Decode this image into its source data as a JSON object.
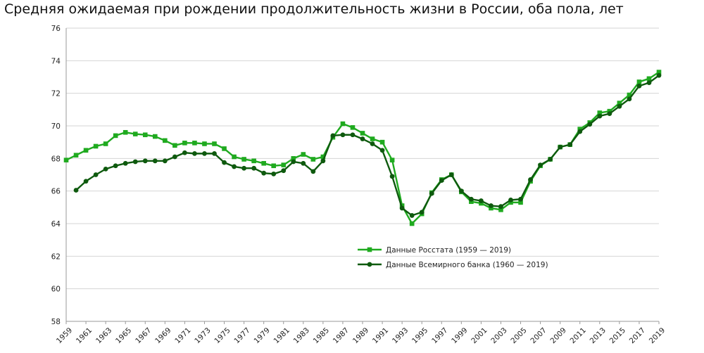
{
  "chart_data": {
    "type": "line",
    "title": "Средняя ожидаемая при рождении продолжительность жизни в России, оба пола, лет",
    "xlabel": "",
    "ylabel": "",
    "xlim": [
      1959,
      2019
    ],
    "ylim": [
      58,
      76
    ],
    "y_ticks": [
      58,
      60,
      62,
      64,
      66,
      68,
      70,
      72,
      74,
      76
    ],
    "x_tick_labels": [
      "1959",
      "1961",
      "1963",
      "1965",
      "1967",
      "1969",
      "1971",
      "1973",
      "1975",
      "1977",
      "1979",
      "1981",
      "1983",
      "1985",
      "1987",
      "1989",
      "1991",
      "1993",
      "1995",
      "1997",
      "1999",
      "2001",
      "2003",
      "2005",
      "2007",
      "2009",
      "2011",
      "2013",
      "2015",
      "2017",
      "2019"
    ],
    "grid": "horizontal",
    "legend_position": "center-right",
    "series": [
      {
        "name": "Данные Росстата (1959 — 2019)",
        "color": "#1faa1f",
        "marker": "square",
        "x": [
          1959,
          1960,
          1961,
          1962,
          1963,
          1964,
          1965,
          1966,
          1967,
          1968,
          1969,
          1970,
          1971,
          1972,
          1973,
          1974,
          1975,
          1976,
          1977,
          1978,
          1979,
          1980,
          1981,
          1982,
          1983,
          1984,
          1985,
          1986,
          1987,
          1988,
          1989,
          1990,
          1991,
          1992,
          1993,
          1994,
          1995,
          1996,
          1997,
          1998,
          1999,
          2000,
          2001,
          2002,
          2003,
          2004,
          2005,
          2006,
          2007,
          2008,
          2009,
          2010,
          2011,
          2012,
          2013,
          2014,
          2015,
          2016,
          2017,
          2018,
          2019
        ],
        "values": [
          67.9,
          68.2,
          68.5,
          68.75,
          68.9,
          69.4,
          69.6,
          69.5,
          69.45,
          69.35,
          69.1,
          68.8,
          68.95,
          68.95,
          68.9,
          68.9,
          68.6,
          68.1,
          67.95,
          67.85,
          67.7,
          67.55,
          67.6,
          68.0,
          68.25,
          67.95,
          68.1,
          69.3,
          70.13,
          69.9,
          69.55,
          69.2,
          69.0,
          67.9,
          65.1,
          64.0,
          64.6,
          65.9,
          66.7,
          67.0,
          65.95,
          65.35,
          65.25,
          64.95,
          64.85,
          65.3,
          65.3,
          66.6,
          67.55,
          67.95,
          68.7,
          68.85,
          69.8,
          70.2,
          70.8,
          70.9,
          71.4,
          71.9,
          72.7,
          72.9,
          73.3
        ]
      },
      {
        "name": "Данные Всемирного банка (1960 — 2019)",
        "color": "#0e5a0e",
        "marker": "circle",
        "x": [
          1960,
          1961,
          1962,
          1963,
          1964,
          1965,
          1966,
          1967,
          1968,
          1969,
          1970,
          1971,
          1972,
          1973,
          1974,
          1975,
          1976,
          1977,
          1978,
          1979,
          1980,
          1981,
          1982,
          1983,
          1984,
          1985,
          1986,
          1987,
          1988,
          1989,
          1990,
          1991,
          1992,
          1993,
          1994,
          1995,
          1996,
          1997,
          1998,
          1999,
          2000,
          2001,
          2002,
          2003,
          2004,
          2005,
          2006,
          2007,
          2008,
          2009,
          2010,
          2011,
          2012,
          2013,
          2014,
          2015,
          2016,
          2017,
          2018,
          2019
        ],
        "values": [
          66.05,
          66.6,
          67.0,
          67.35,
          67.55,
          67.7,
          67.8,
          67.85,
          67.85,
          67.85,
          68.1,
          68.35,
          68.3,
          68.3,
          68.3,
          67.75,
          67.5,
          67.4,
          67.4,
          67.1,
          67.05,
          67.25,
          67.8,
          67.7,
          67.2,
          67.85,
          69.4,
          69.45,
          69.45,
          69.2,
          68.9,
          68.5,
          66.9,
          64.95,
          64.5,
          64.7,
          65.85,
          66.65,
          67.0,
          66.0,
          65.5,
          65.4,
          65.1,
          65.05,
          65.45,
          65.5,
          66.7,
          67.6,
          67.95,
          68.7,
          68.85,
          69.65,
          70.1,
          70.6,
          70.75,
          71.2,
          71.65,
          72.45,
          72.65,
          73.1
        ]
      }
    ]
  }
}
